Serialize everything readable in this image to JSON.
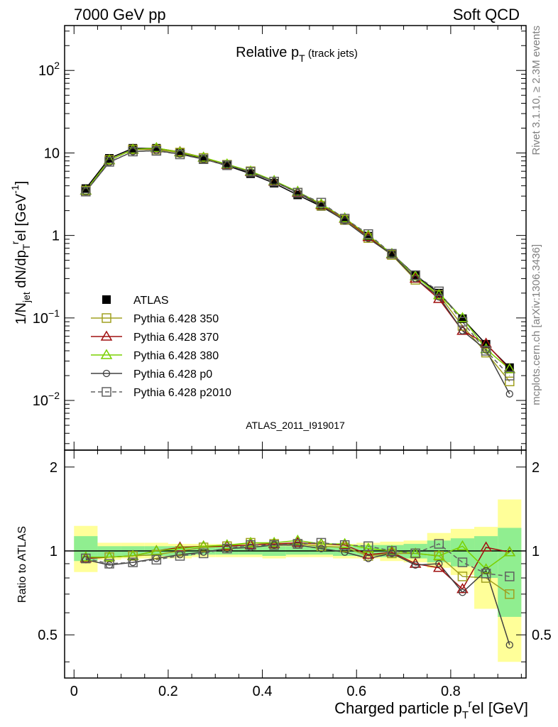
{
  "header": {
    "left": "7000 GeV pp",
    "right": "Soft QCD"
  },
  "side_labels": {
    "rivet": "Rivet 3.1.10, ≥ 2.3M events",
    "mcplots": "mcplots.cern.ch [arXiv:1306.3436]"
  },
  "analysis_id": "ATLAS_2011_I919017",
  "chart_data": [
    {
      "type": "line",
      "title": "Relative p_T (track jets)",
      "ylabel": "1/N_jet dN/dp_T^rel [GeV^-1]",
      "xlim": [
        -0.02,
        0.96
      ],
      "ylim": [
        0.0025,
        350
      ],
      "yscale": "log",
      "yticklabels": [
        "10^-2",
        "10^-1",
        "1",
        "10",
        "10^2"
      ],
      "legend_position": "lower-left",
      "x": [
        0.025,
        0.075,
        0.125,
        0.175,
        0.225,
        0.275,
        0.325,
        0.375,
        0.425,
        0.475,
        0.525,
        0.575,
        0.625,
        0.675,
        0.725,
        0.775,
        0.825,
        0.875,
        0.925
      ],
      "series": [
        {
          "name": "ATLAS",
          "color": "#000000",
          "marker": "filled-square",
          "dashed": false,
          "values": [
            3.7,
            8.6,
            11.4,
            11.4,
            10.0,
            8.5,
            7.0,
            5.6,
            4.3,
            3.1,
            2.25,
            1.52,
            0.98,
            0.6,
            0.33,
            0.2,
            0.098,
            0.048,
            0.025
          ]
        },
        {
          "name": "Pythia 6.428 350",
          "color": "#a0a020",
          "marker": "open-square",
          "dashed": false,
          "values": [
            3.5,
            8.2,
            11.0,
            11.0,
            10.1,
            8.7,
            7.2,
            6.0,
            4.5,
            3.3,
            2.3,
            1.55,
            0.93,
            0.58,
            0.29,
            0.19,
            0.08,
            0.038,
            0.017
          ]
        },
        {
          "name": "Pythia 6.428 370",
          "color": "#a01010",
          "marker": "open-triangle",
          "dashed": false,
          "values": [
            3.5,
            8.2,
            11.0,
            11.4,
            10.3,
            8.8,
            7.2,
            5.9,
            4.5,
            3.3,
            2.35,
            1.6,
            0.96,
            0.59,
            0.3,
            0.17,
            0.07,
            0.049,
            0.024
          ]
        },
        {
          "name": "Pythia 6.428 380",
          "color": "#7ad000",
          "marker": "open-triangle",
          "dashed": false,
          "values": [
            3.5,
            8.2,
            11.0,
            11.5,
            10.2,
            8.8,
            7.3,
            6.0,
            4.6,
            3.4,
            2.4,
            1.62,
            1.0,
            0.6,
            0.32,
            0.19,
            0.1,
            0.042,
            0.024
          ]
        },
        {
          "name": "Pythia 6.428 p0",
          "color": "#404040",
          "marker": "open-circle",
          "dashed": false,
          "values": [
            3.4,
            7.7,
            10.4,
            10.7,
            9.7,
            8.4,
            7.1,
            5.8,
            4.5,
            3.3,
            2.3,
            1.5,
            0.92,
            0.59,
            0.3,
            0.18,
            0.07,
            0.041,
            0.012
          ]
        },
        {
          "name": "Pythia 6.428 p2010",
          "color": "#606060",
          "marker": "open-square",
          "dashed": true,
          "values": [
            3.4,
            7.8,
            10.4,
            10.6,
            9.6,
            8.4,
            7.1,
            5.9,
            4.5,
            3.3,
            2.5,
            1.6,
            1.04,
            0.6,
            0.33,
            0.21,
            0.09,
            0.04,
            0.02
          ]
        }
      ]
    },
    {
      "type": "line",
      "xlabel": "Charged particle p_T^rel [GeV]",
      "ylabel": "Ratio to ATLAS",
      "xlim": [
        -0.02,
        0.96
      ],
      "ylim": [
        0.35,
        2.3
      ],
      "xticklabels": [
        "0",
        "0.2",
        "0.4",
        "0.6",
        "0.8"
      ],
      "yticklabels": [
        "0.5",
        "1",
        "2"
      ],
      "bands": {
        "x_edges": [
          0.0,
          0.05,
          0.1,
          0.15,
          0.2,
          0.25,
          0.3,
          0.35,
          0.4,
          0.45,
          0.5,
          0.55,
          0.6,
          0.65,
          0.7,
          0.75,
          0.8,
          0.85,
          0.9,
          0.95
        ],
        "outer": [
          [
            0.84,
            1.23
          ],
          [
            0.93,
            1.07
          ],
          [
            0.94,
            1.07
          ],
          [
            0.94,
            1.07
          ],
          [
            0.94,
            1.06
          ],
          [
            0.95,
            1.06
          ],
          [
            0.95,
            1.06
          ],
          [
            0.95,
            1.06
          ],
          [
            0.94,
            1.06
          ],
          [
            0.95,
            1.06
          ],
          [
            0.95,
            1.06
          ],
          [
            0.94,
            1.06
          ],
          [
            0.94,
            1.07
          ],
          [
            0.92,
            1.08
          ],
          [
            0.91,
            1.09
          ],
          [
            0.87,
            1.16
          ],
          [
            0.82,
            1.2
          ],
          [
            0.62,
            1.22
          ],
          [
            0.4,
            1.53
          ]
        ],
        "inner": [
          [
            0.92,
            1.13
          ],
          [
            0.95,
            1.04
          ],
          [
            0.96,
            1.04
          ],
          [
            0.96,
            1.04
          ],
          [
            0.96,
            1.04
          ],
          [
            0.97,
            1.04
          ],
          [
            0.97,
            1.04
          ],
          [
            0.97,
            1.04
          ],
          [
            0.96,
            1.04
          ],
          [
            0.97,
            1.04
          ],
          [
            0.97,
            1.04
          ],
          [
            0.96,
            1.04
          ],
          [
            0.96,
            1.05
          ],
          [
            0.95,
            1.05
          ],
          [
            0.94,
            1.06
          ],
          [
            0.91,
            1.09
          ],
          [
            0.88,
            1.11
          ],
          [
            0.8,
            1.13
          ],
          [
            0.58,
            1.21
          ]
        ],
        "outer_color": "#ffff99",
        "inner_color": "#90ee90"
      },
      "x": [
        0.025,
        0.075,
        0.125,
        0.175,
        0.225,
        0.275,
        0.325,
        0.375,
        0.425,
        0.475,
        0.525,
        0.575,
        0.625,
        0.675,
        0.725,
        0.775,
        0.825,
        0.875,
        0.925
      ],
      "series": [
        {
          "name": "Pythia 6.428 350",
          "color": "#a0a020",
          "marker": "open-square",
          "dashed": false,
          "values": [
            0.94,
            0.95,
            0.96,
            0.97,
            1.0,
            1.03,
            1.04,
            1.07,
            1.06,
            1.06,
            1.04,
            1.03,
            0.96,
            0.98,
            0.98,
            0.96,
            0.81,
            0.8,
            0.7
          ]
        },
        {
          "name": "Pythia 6.428 370",
          "color": "#a01010",
          "marker": "open-triangle",
          "dashed": false,
          "values": [
            0.94,
            0.95,
            0.96,
            1.0,
            1.03,
            1.04,
            1.04,
            1.05,
            1.06,
            1.07,
            1.06,
            1.05,
            0.97,
            0.99,
            0.9,
            0.87,
            0.73,
            1.03,
            0.99
          ]
        },
        {
          "name": "Pythia 6.428 380",
          "color": "#7ad000",
          "marker": "open-triangle",
          "dashed": false,
          "values": [
            0.95,
            0.95,
            0.96,
            1.0,
            1.02,
            1.04,
            1.05,
            1.07,
            1.07,
            1.09,
            1.06,
            1.06,
            1.02,
            1.0,
            0.98,
            0.96,
            1.04,
            0.86,
            0.99
          ]
        },
        {
          "name": "Pythia 6.428 p0",
          "color": "#404040",
          "marker": "open-circle",
          "dashed": false,
          "values": [
            0.93,
            0.89,
            0.91,
            0.94,
            0.97,
            0.99,
            1.02,
            1.03,
            1.05,
            1.05,
            1.02,
            0.99,
            0.94,
            0.98,
            0.89,
            0.9,
            0.71,
            0.85,
            0.46
          ]
        },
        {
          "name": "Pythia 6.428 p2010",
          "color": "#606060",
          "marker": "open-square",
          "dashed": true,
          "values": [
            0.94,
            0.9,
            0.91,
            0.93,
            0.96,
            0.98,
            1.02,
            1.05,
            1.05,
            1.06,
            1.07,
            1.05,
            1.04,
            1.0,
            0.98,
            1.06,
            0.91,
            0.83,
            0.81
          ]
        }
      ]
    }
  ]
}
